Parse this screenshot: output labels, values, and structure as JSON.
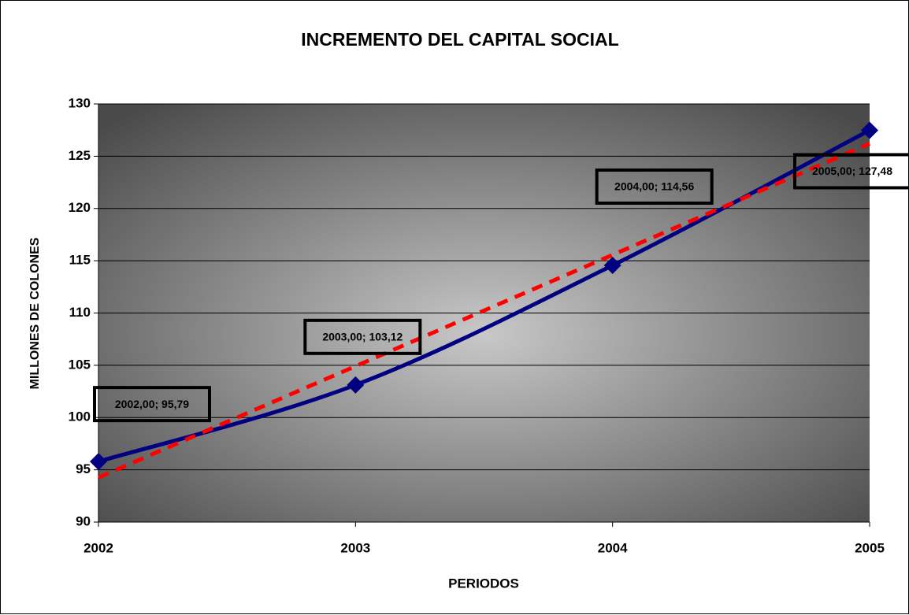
{
  "chart_data": {
    "type": "line",
    "title": "INCREMENTO DEL CAPITAL SOCIAL",
    "x_label": "PERIODOS",
    "y_label": "MILLONES DE COLONES",
    "x": [
      2002,
      2003,
      2004,
      2005
    ],
    "series": [
      {
        "color": "#000080",
        "values": [
          95.79,
          103.12,
          114.56,
          127.48
        ],
        "value_labels": [
          "2002,00; 95,79",
          "2003,00; 103,12",
          "2004,00; 114,56",
          "2005,00; 127,48"
        ]
      }
    ],
    "trendline": {
      "x": [
        2002,
        2005
      ],
      "values": [
        94.26,
        126.21
      ],
      "color": "#ff0000"
    },
    "xlim": [
      2002,
      2005
    ],
    "xticks": [
      2002,
      2003,
      2004,
      2005
    ],
    "ylim": [
      90,
      130
    ],
    "yticks": [
      90,
      95,
      100,
      105,
      110,
      115,
      120,
      125,
      130
    ],
    "grid": true
  }
}
